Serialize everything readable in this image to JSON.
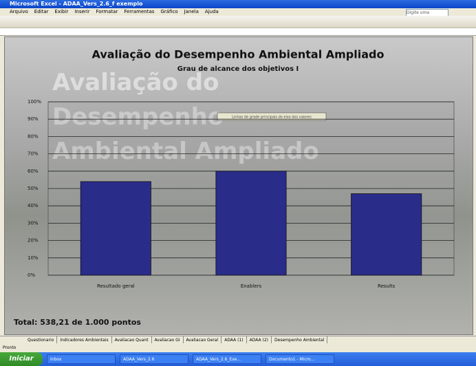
{
  "window": {
    "title": "Microsoft Excel - ADAA_Vers_2.6_f exemplo",
    "menu": [
      "Arquivo",
      "Editar",
      "Exibir",
      "Inserir",
      "Formatar",
      "Ferramentas",
      "Gráfico",
      "Janela",
      "Ajuda"
    ],
    "help_box": "Digite uma pergunta"
  },
  "chart_data": {
    "type": "bar",
    "title": "Avaliação do Desempenho Ambiental Ampliado",
    "subtitle": "Grau de alcance dos objetivos I",
    "categories": [
      "Resultado geral",
      "Enablers",
      "Results"
    ],
    "values": [
      54,
      60,
      47
    ],
    "color": "#2a2c8a",
    "ylim": [
      0,
      100
    ],
    "yticks": [
      {
        "value": 0,
        "label": "0%"
      },
      {
        "value": 10,
        "label": "10%"
      },
      {
        "value": 20,
        "label": "20%"
      },
      {
        "value": 30,
        "label": "30%"
      },
      {
        "value": 40,
        "label": "40%"
      },
      {
        "value": 50,
        "label": "50%"
      },
      {
        "value": 60,
        "label": "60%"
      },
      {
        "value": 70,
        "label": "70%"
      },
      {
        "value": 80,
        "label": "80%"
      },
      {
        "value": 90,
        "label": "90%"
      },
      {
        "value": 100,
        "label": "100%"
      }
    ],
    "grid": true,
    "tooltip": "Linhas de grade principais do eixo dos valores",
    "footer": "Total: 538,21 de 1.000 pontos"
  },
  "sheet_tabs": [
    "Questionario",
    "Indicadores Ambientais",
    "Avaliacao Quant",
    "Avaliacao GI",
    "Avaliacao Geral",
    "ADAA (1)",
    "ADAA (2)",
    "Desempenho Ambiental"
  ],
  "status": "Pronto",
  "taskbar": {
    "start": "Iniciar",
    "items": [
      "Inbox",
      "ADAA_Vers_2.6",
      "ADAA_Vers_2.6_Exe...",
      "Documento1 - Micro..."
    ]
  }
}
